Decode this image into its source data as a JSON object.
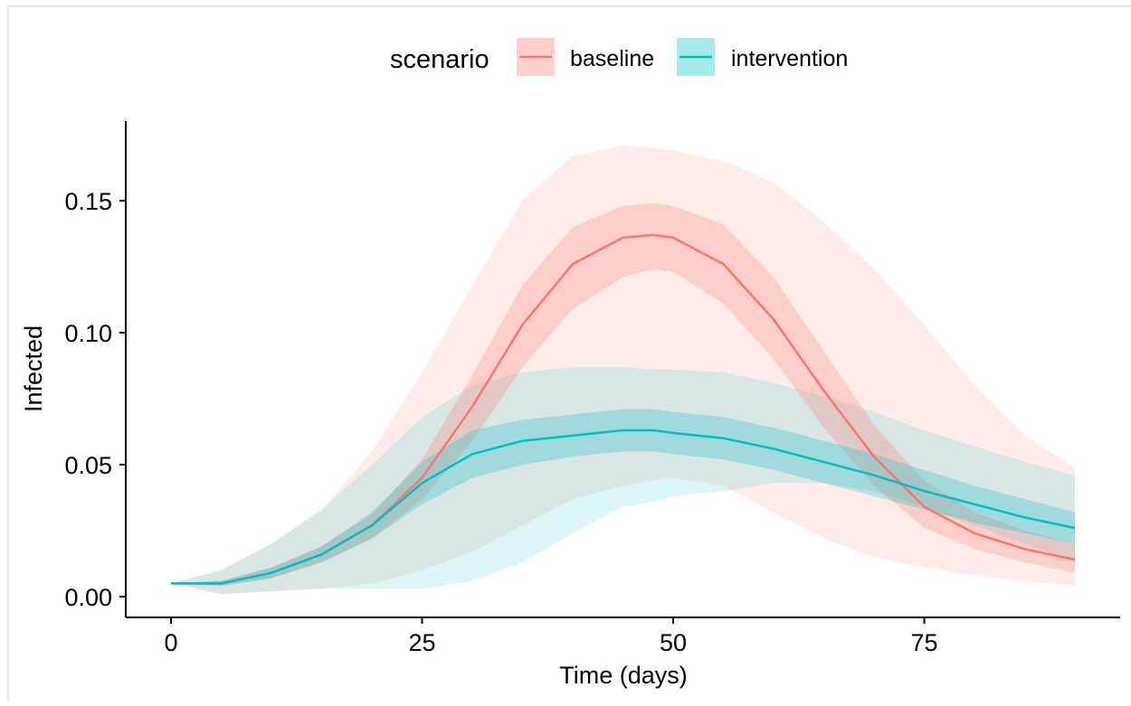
{
  "chart_data": {
    "type": "line",
    "xlabel": "Time (days)",
    "ylabel": "Infected",
    "xlim": [
      0,
      90
    ],
    "ylim": [
      0,
      0.18
    ],
    "x_ticks": [
      0,
      25,
      50,
      75
    ],
    "y_ticks": [
      0,
      0.05,
      0.1,
      0.15
    ],
    "x_tick_labels": [
      "0",
      "25",
      "50",
      "75"
    ],
    "y_tick_labels": [
      "0.00",
      "0.05",
      "0.10",
      "0.15"
    ],
    "grid": false,
    "legend": {
      "title": "scenario",
      "position": "top"
    },
    "x": [
      0,
      5,
      10,
      15,
      20,
      25,
      30,
      35,
      40,
      45,
      48,
      50,
      55,
      60,
      65,
      70,
      75,
      80,
      85,
      90
    ],
    "series": [
      {
        "name": "baseline",
        "color": "#F8766D",
        "values": [
          0.005,
          0.005,
          0.009,
          0.016,
          0.027,
          0.045,
          0.072,
          0.103,
          0.126,
          0.136,
          0.137,
          0.136,
          0.126,
          0.105,
          0.078,
          0.053,
          0.034,
          0.024,
          0.018,
          0.014
        ],
        "inner_lower": [
          0.005,
          0.004,
          0.007,
          0.013,
          0.022,
          0.037,
          0.059,
          0.087,
          0.109,
          0.121,
          0.124,
          0.123,
          0.111,
          0.09,
          0.064,
          0.042,
          0.026,
          0.018,
          0.013,
          0.009
        ],
        "inner_upper": [
          0.005,
          0.006,
          0.011,
          0.019,
          0.031,
          0.052,
          0.084,
          0.118,
          0.14,
          0.148,
          0.149,
          0.148,
          0.141,
          0.121,
          0.093,
          0.065,
          0.044,
          0.032,
          0.025,
          0.02
        ],
        "outer_lower": [
          0.005,
          0.001,
          0.002,
          0.003,
          0.005,
          0.01,
          0.017,
          0.027,
          0.037,
          0.042,
          0.044,
          0.045,
          0.042,
          0.032,
          0.022,
          0.015,
          0.011,
          0.008,
          0.006,
          0.004
        ],
        "outer_upper": [
          0.005,
          0.01,
          0.02,
          0.033,
          0.055,
          0.085,
          0.118,
          0.15,
          0.167,
          0.171,
          0.17,
          0.169,
          0.165,
          0.157,
          0.142,
          0.124,
          0.103,
          0.08,
          0.061,
          0.049
        ]
      },
      {
        "name": "intervention",
        "color": "#00BFC4",
        "values": [
          0.005,
          0.005,
          0.009,
          0.016,
          0.027,
          0.043,
          0.054,
          0.059,
          0.061,
          0.063,
          0.063,
          0.062,
          0.06,
          0.056,
          0.051,
          0.046,
          0.04,
          0.035,
          0.03,
          0.026
        ],
        "inner_lower": [
          0.005,
          0.004,
          0.007,
          0.013,
          0.022,
          0.035,
          0.045,
          0.05,
          0.053,
          0.055,
          0.055,
          0.054,
          0.052,
          0.048,
          0.043,
          0.038,
          0.033,
          0.028,
          0.024,
          0.02
        ],
        "inner_upper": [
          0.005,
          0.006,
          0.011,
          0.019,
          0.032,
          0.051,
          0.063,
          0.067,
          0.069,
          0.071,
          0.071,
          0.07,
          0.068,
          0.064,
          0.059,
          0.054,
          0.048,
          0.042,
          0.037,
          0.032
        ],
        "outer_lower": [
          0.005,
          0.001,
          0.002,
          0.003,
          0.003,
          0.003,
          0.006,
          0.013,
          0.024,
          0.034,
          0.036,
          0.038,
          0.04,
          0.043,
          0.043,
          0.04,
          0.034,
          0.027,
          0.02,
          0.013
        ],
        "outer_upper": [
          0.005,
          0.01,
          0.02,
          0.033,
          0.05,
          0.068,
          0.08,
          0.085,
          0.087,
          0.087,
          0.086,
          0.086,
          0.085,
          0.081,
          0.076,
          0.07,
          0.063,
          0.057,
          0.051,
          0.046
        ]
      }
    ]
  }
}
